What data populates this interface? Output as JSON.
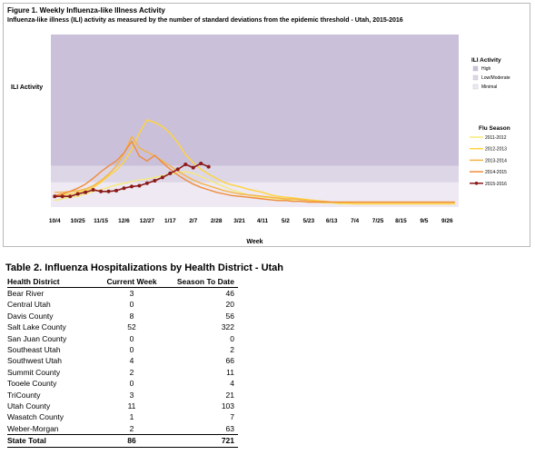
{
  "figure": {
    "title": "Figure 1. Weekly Influenza-like Illness Activity",
    "subtitle": "Influenza-like illness (ILI) activity  as measured by the number of standard deviations from the epidemic threshold - Utah, 2015-2016"
  },
  "chart_data": {
    "type": "line",
    "title": "Figure 1. Weekly Influenza-like Illness Activity",
    "ylabel": "ILI Activity",
    "xlabel": "Week",
    "x_tick_labels": [
      "10/4",
      "10/25",
      "11/15",
      "12/6",
      "12/27",
      "1/17",
      "2/7",
      "2/28",
      "3/21",
      "4/11",
      "5/2",
      "5/23",
      "6/13",
      "7/4",
      "7/25",
      "8/15",
      "9/5",
      "9/26"
    ],
    "num_weeks": 53,
    "ylim": [
      -1,
      20
    ],
    "grid": false,
    "legend_position": "right",
    "activity_bands": [
      {
        "label": "High",
        "from": 4,
        "to": 20,
        "color": "#cbc0d9"
      },
      {
        "label": "Low/Moderate",
        "from": 2,
        "to": 4,
        "color": "#ddd6e6"
      },
      {
        "label": "Minimal",
        "from": -1,
        "to": 2,
        "color": "#eee9f2"
      }
    ],
    "activity_legend_title": "ILI Activity",
    "season_legend_title": "Flu Season",
    "series": [
      {
        "name": "2011-2012",
        "color": "#f5ea7a",
        "values": [
          -0.2,
          0,
          0.2,
          0.3,
          0.6,
          0.9,
          1.1,
          1.4,
          1.7,
          1.9,
          2.1,
          2.3,
          2.4,
          2.6,
          2.8,
          3,
          3.2,
          3.3,
          3.1,
          2.7,
          2.3,
          1.9,
          1.5,
          1.1,
          0.8,
          0.5,
          0.3,
          0.2,
          0.1,
          0,
          -0.1,
          -0.2,
          -0.3,
          -0.4,
          -0.4,
          -0.5,
          -0.5,
          -0.6,
          -0.6,
          -0.6,
          -0.6,
          -0.6,
          -0.6,
          -0.6,
          -0.6,
          -0.6,
          -0.6,
          -0.6,
          -0.6,
          -0.6,
          -0.6,
          -0.6,
          -0.6
        ]
      },
      {
        "name": "2012-2013",
        "color": "#ffd43b",
        "values": [
          0.2,
          0.5,
          0.6,
          0.8,
          1.0,
          1.4,
          2.0,
          2.8,
          3.5,
          4.5,
          6.0,
          8.0,
          9.6,
          9.3,
          8.8,
          8.0,
          6.8,
          5.4,
          4.4,
          3.6,
          3.0,
          2.5,
          2.0,
          1.7,
          1.5,
          1.2,
          1.0,
          0.8,
          0.5,
          0.3,
          0.2,
          0.1,
          0,
          -0.1,
          -0.2,
          -0.3,
          -0.4,
          -0.5,
          -0.5,
          -0.6,
          -0.6,
          -0.6,
          -0.6,
          -0.6,
          -0.6,
          -0.6,
          -0.6,
          -0.6,
          -0.6,
          -0.6,
          -0.6,
          -0.6,
          -0.6
        ]
      },
      {
        "name": "2013-2014",
        "color": "#f5b347",
        "values": [
          0.8,
          0.8,
          0.9,
          1.0,
          1.2,
          1.6,
          2.2,
          3.0,
          4.0,
          5.5,
          7.6,
          6.2,
          5.7,
          5.2,
          4.6,
          4.0,
          3.4,
          2.8,
          2.3,
          1.9,
          1.6,
          1.3,
          1.0,
          0.8,
          0.6,
          0.5,
          0.4,
          0.3,
          0.2,
          0.1,
          0,
          0,
          -0.1,
          -0.2,
          -0.3,
          -0.3,
          -0.4,
          -0.4,
          -0.4,
          -0.4,
          -0.4,
          -0.4,
          -0.4,
          -0.4,
          -0.4,
          -0.4,
          -0.4,
          -0.4,
          -0.4,
          -0.4,
          -0.4,
          -0.4,
          -0.4
        ]
      },
      {
        "name": "2014-2015",
        "color": "#f08a3a",
        "values": [
          0.4,
          0.6,
          0.9,
          1.3,
          1.8,
          2.5,
          3.3,
          4.0,
          4.6,
          5.6,
          7.0,
          5.2,
          4.6,
          5.3,
          4.4,
          3.6,
          2.9,
          2.3,
          1.8,
          1.4,
          1.1,
          0.8,
          0.6,
          0.4,
          0.3,
          0.2,
          0.1,
          0,
          -0.1,
          -0.2,
          -0.2,
          -0.3,
          -0.3,
          -0.4,
          -0.4,
          -0.4,
          -0.4,
          -0.4,
          -0.4,
          -0.4,
          -0.4,
          -0.4,
          -0.4,
          -0.4,
          -0.4,
          -0.4,
          -0.4,
          -0.4,
          -0.4,
          -0.4,
          -0.4,
          -0.4,
          -0.4
        ]
      },
      {
        "name": "2015-2016",
        "color": "#8b1a1a",
        "markers": true,
        "values": [
          0.3,
          0.3,
          0.3,
          0.6,
          0.8,
          1.1,
          0.9,
          0.9,
          1.0,
          1.3,
          1.5,
          1.6,
          1.9,
          2.2,
          2.6,
          3.1,
          3.6,
          4.2,
          3.8,
          4.3,
          3.9
        ]
      }
    ]
  },
  "table": {
    "title": "Table 2. Influenza Hospitalizations by Health District - Utah",
    "headers": [
      "Health District",
      "Current Week",
      "Season To Date"
    ],
    "rows": [
      [
        "Bear River",
        "3",
        "46"
      ],
      [
        "Central Utah",
        "0",
        "20"
      ],
      [
        "Davis County",
        "8",
        "56"
      ],
      [
        "Salt Lake County",
        "52",
        "322"
      ],
      [
        "San Juan County",
        "0",
        "0"
      ],
      [
        "Southeast Utah",
        "0",
        "2"
      ],
      [
        "Southwest Utah",
        "4",
        "66"
      ],
      [
        "Summit County",
        "2",
        "11"
      ],
      [
        "Tooele County",
        "0",
        "4"
      ],
      [
        "TriCounty",
        "3",
        "21"
      ],
      [
        "Utah County",
        "11",
        "103"
      ],
      [
        "Wasatch County",
        "1",
        "7"
      ],
      [
        "Weber-Morgan",
        "2",
        "63"
      ]
    ],
    "total": [
      "State Total",
      "86",
      "721"
    ]
  }
}
